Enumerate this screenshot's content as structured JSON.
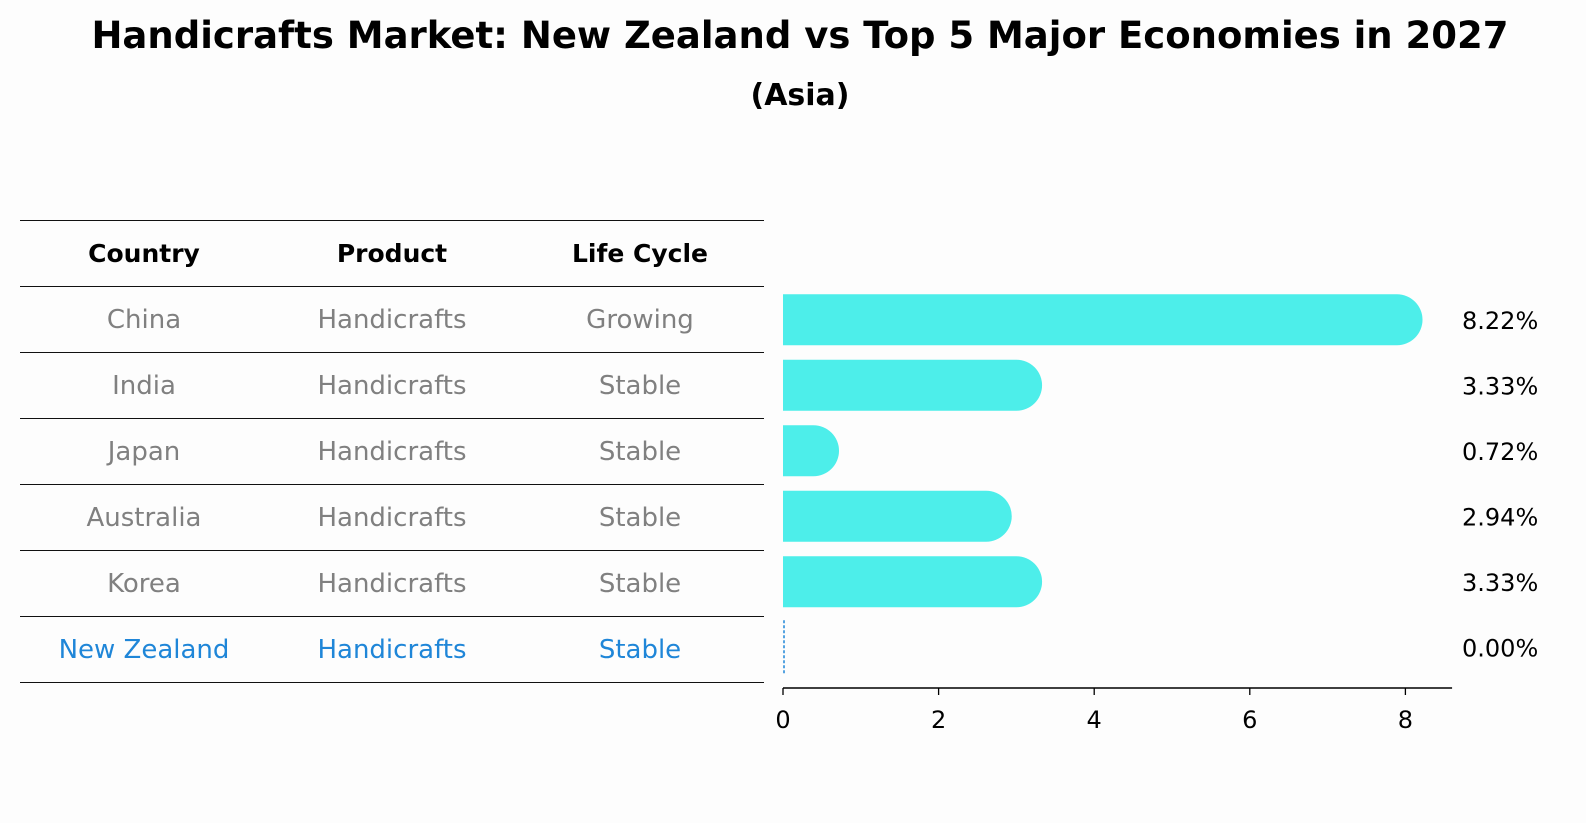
{
  "title": "Handicrafts Market: New Zealand vs Top 5 Major Economies in 2027",
  "subtitle": "(Asia)",
  "table": {
    "headers": [
      "Country",
      "Product",
      "Life Cycle"
    ],
    "rows": [
      {
        "country": "China",
        "product": "Handicrafts",
        "life_cycle": "Growing"
      },
      {
        "country": "India",
        "product": "Handicrafts",
        "life_cycle": "Stable"
      },
      {
        "country": "Japan",
        "product": "Handicrafts",
        "life_cycle": "Stable"
      },
      {
        "country": "Australia",
        "product": "Handicrafts",
        "life_cycle": "Stable"
      },
      {
        "country": "Korea",
        "product": "Handicrafts",
        "life_cycle": "Stable"
      },
      {
        "country": "New Zealand",
        "product": "Handicrafts",
        "life_cycle": "Stable"
      }
    ]
  },
  "chart_data": {
    "type": "bar",
    "orientation": "horizontal",
    "title": "Handicrafts Market: New Zealand vs Top 5 Major Economies in 2027",
    "subtitle": "(Asia)",
    "categories": [
      "China",
      "India",
      "Japan",
      "Australia",
      "Korea",
      "New Zealand"
    ],
    "values": [
      8.22,
      3.33,
      0.72,
      2.94,
      3.33,
      0.0
    ],
    "value_labels": [
      "8.22%",
      "3.33%",
      "0.72%",
      "2.94%",
      "3.33%",
      "0.00%"
    ],
    "xlim": [
      0,
      8.6
    ],
    "xticks": [
      0,
      2,
      4,
      6,
      8
    ],
    "xlabel": "",
    "ylabel": "",
    "highlight_category": "New Zealand",
    "bar_color": "#4deeea",
    "highlight_color": "#1f86d8",
    "grid": false
  }
}
